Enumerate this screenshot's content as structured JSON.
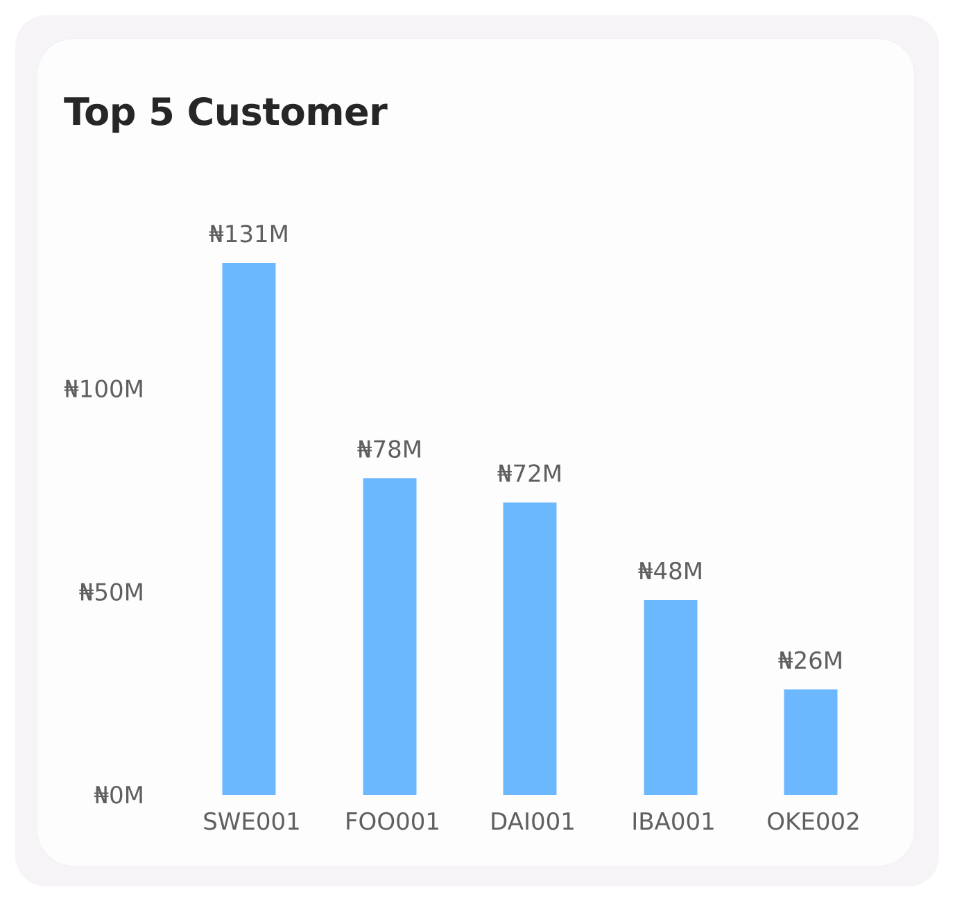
{
  "chart_data": {
    "type": "bar",
    "title": "Top 5 Customer",
    "xlabel": "",
    "ylabel": "",
    "categories": [
      "SWE001",
      "FOO001",
      "DAI001",
      "IBA001",
      "OKE002"
    ],
    "values": [
      131,
      78,
      72,
      48,
      26
    ],
    "data_labels": [
      "₦131M",
      "₦78M",
      "₦72M",
      "₦48M",
      "₦26M"
    ],
    "yticks": [
      0,
      50,
      100
    ],
    "ytick_labels": [
      "₦0M",
      "₦50M",
      "₦100M"
    ],
    "ylim": [
      0,
      131
    ],
    "bar_color": "#6cb8fe",
    "grid": false,
    "legend": "none"
  }
}
